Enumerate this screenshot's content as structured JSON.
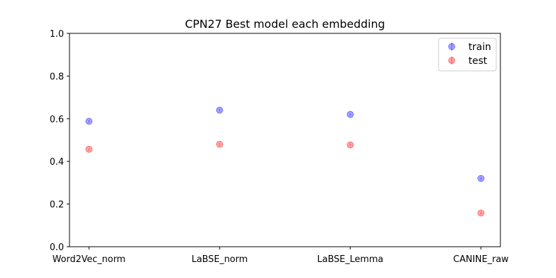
{
  "chart_data": {
    "type": "scatter",
    "title": "CPN27 Best model each embedding",
    "xlabel": "",
    "ylabel": "",
    "categories": [
      "Word2Vec_norm",
      "LaBSE_norm",
      "LaBSE_Lemma",
      "CANINE_raw"
    ],
    "ylim": [
      0.0,
      1.0
    ],
    "yticks": [
      "0.0",
      "0.2",
      "0.4",
      "0.6",
      "0.8",
      "1.0"
    ],
    "grid": false,
    "legend_position": "top-right",
    "series": [
      {
        "name": "train",
        "color": "#0000ff",
        "values": [
          0.588,
          0.64,
          0.62,
          0.32
        ]
      },
      {
        "name": "test",
        "color": "#ff0000",
        "values": [
          0.457,
          0.48,
          0.477,
          0.158
        ]
      }
    ]
  }
}
